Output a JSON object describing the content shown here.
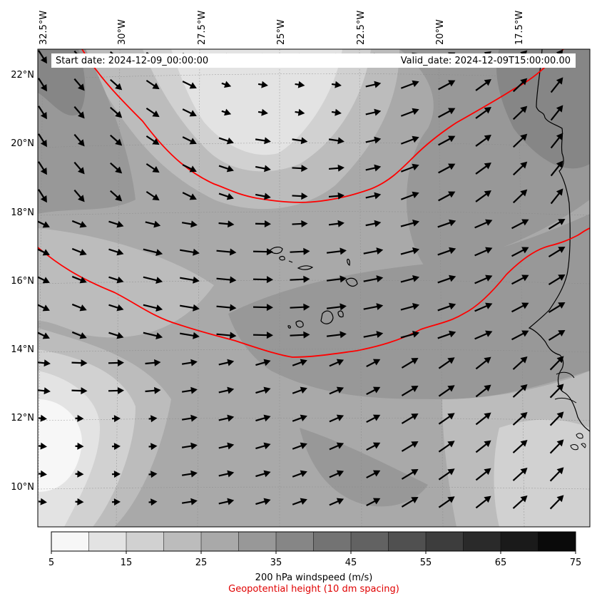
{
  "map": {
    "region": "Cape Verde and West African coast",
    "lon_range": [
      -33,
      -15.6
    ],
    "lat_range": [
      8.9,
      22.8
    ],
    "background_style": "grayscale filled contours of 200 hPa windspeed",
    "lon_labels": [
      "32.5°W",
      "30°W",
      "27.5°W",
      "25°W",
      "22.5°W",
      "20°W",
      "17.5°W"
    ],
    "lat_labels": [
      "22°N",
      "20°N",
      "18°N",
      "16°N",
      "14°N",
      "12°N",
      "10°N"
    ],
    "features": [
      "cape-verde-islands",
      "senegal-mauritania-coastline",
      "wind-vector-arrows",
      "geopotential-height-contours"
    ],
    "contour_color": "#ff0000",
    "coastline_color": "#000000"
  },
  "info": {
    "start_date": "Start date: 2024-12-09_00:00:00",
    "valid_date": "Valid_date: 2024-12-09T15:00:00.00"
  },
  "colorbar": {
    "ticks": [
      "5",
      "15",
      "25",
      "35",
      "45",
      "55",
      "65",
      "75"
    ],
    "levels": [
      5,
      10,
      15,
      20,
      25,
      30,
      35,
      40,
      45,
      50,
      55,
      60,
      65,
      70,
      75
    ],
    "colors": [
      "#f7f7f7",
      "#e3e3e3",
      "#d1d1d1",
      "#bcbcbc",
      "#a9a9a9",
      "#989898",
      "#868686",
      "#737373",
      "#626262",
      "#505050",
      "#3d3d3d",
      "#2a2a2a",
      "#1a1a1a",
      "#0a0a0a"
    ],
    "label": "200 hPa windspeed (m/s)",
    "sublabel": "Geopotential height (10 dm spacing)",
    "sublabel_color": "#ff0000"
  }
}
